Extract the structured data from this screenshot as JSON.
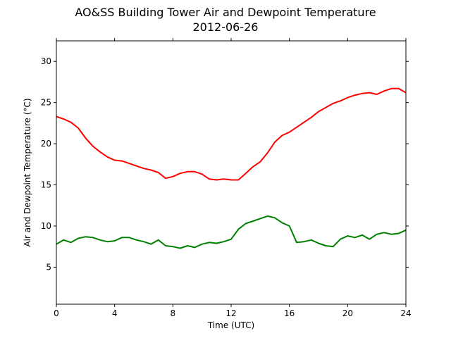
{
  "chart_data": {
    "type": "line",
    "title": "AO&SS Building Tower Air and Dewpoint Temperature",
    "subtitle": "2012-06-26",
    "xlabel": "Time (UTC)",
    "ylabel": "Air and Dewpoint Temperature (°C)",
    "xlim": [
      0,
      24
    ],
    "ylim": [
      0.5,
      32.5
    ],
    "xticks": [
      0,
      4,
      8,
      12,
      16,
      20,
      24
    ],
    "yticks": [
      5,
      10,
      15,
      20,
      25,
      30
    ],
    "grid": false,
    "legend": "none",
    "series": [
      {
        "color": "#ff0000",
        "x": [
          0,
          0.5,
          1,
          1.5,
          2,
          2.5,
          3,
          3.5,
          4,
          4.5,
          5,
          5.5,
          6,
          6.5,
          7,
          7.5,
          8,
          8.5,
          9,
          9.5,
          10,
          10.5,
          11,
          11.5,
          12,
          12.5,
          13,
          13.5,
          14,
          14.5,
          15,
          15.5,
          16,
          16.5,
          17,
          17.5,
          18,
          18.5,
          19,
          19.5,
          20,
          20.5,
          21,
          21.5,
          22,
          22.5,
          23,
          23.5,
          24
        ],
        "values": [
          23.3,
          23.0,
          22.6,
          21.9,
          20.7,
          19.7,
          19.0,
          18.4,
          18.0,
          17.9,
          17.6,
          17.3,
          17.0,
          16.8,
          16.5,
          15.8,
          16.0,
          16.4,
          16.6,
          16.6,
          16.3,
          15.7,
          15.6,
          15.7,
          15.6,
          15.6,
          16.4,
          17.2,
          17.8,
          18.9,
          20.2,
          21.0,
          21.4,
          22.0,
          22.6,
          23.2,
          23.9,
          24.4,
          24.9,
          25.2,
          25.6,
          25.9,
          26.1,
          26.2,
          26.0,
          26.4,
          26.7,
          26.7,
          26.2
        ]
      },
      {
        "color": "#008000",
        "x": [
          0,
          0.5,
          1,
          1.5,
          2,
          2.5,
          3,
          3.5,
          4,
          4.5,
          5,
          5.5,
          6,
          6.5,
          7,
          7.5,
          8,
          8.5,
          9,
          9.5,
          10,
          10.5,
          11,
          11.5,
          12,
          12.5,
          13,
          13.5,
          14,
          14.5,
          15,
          15.5,
          16,
          16.5,
          17,
          17.5,
          18,
          18.5,
          19,
          19.5,
          20,
          20.5,
          21,
          21.5,
          22,
          22.5,
          23,
          23.5,
          24
        ],
        "values": [
          7.8,
          8.3,
          8.0,
          8.5,
          8.7,
          8.6,
          8.3,
          8.1,
          8.2,
          8.6,
          8.6,
          8.3,
          8.1,
          7.8,
          8.3,
          7.6,
          7.5,
          7.3,
          7.6,
          7.4,
          7.8,
          8.0,
          7.9,
          8.1,
          8.4,
          9.6,
          10.3,
          10.6,
          10.9,
          11.2,
          11.0,
          10.4,
          10.0,
          8.0,
          8.1,
          8.3,
          7.9,
          7.6,
          7.5,
          8.4,
          8.8,
          8.6,
          8.9,
          8.4,
          9.0,
          9.2,
          9.0,
          9.1,
          9.5
        ]
      }
    ]
  }
}
